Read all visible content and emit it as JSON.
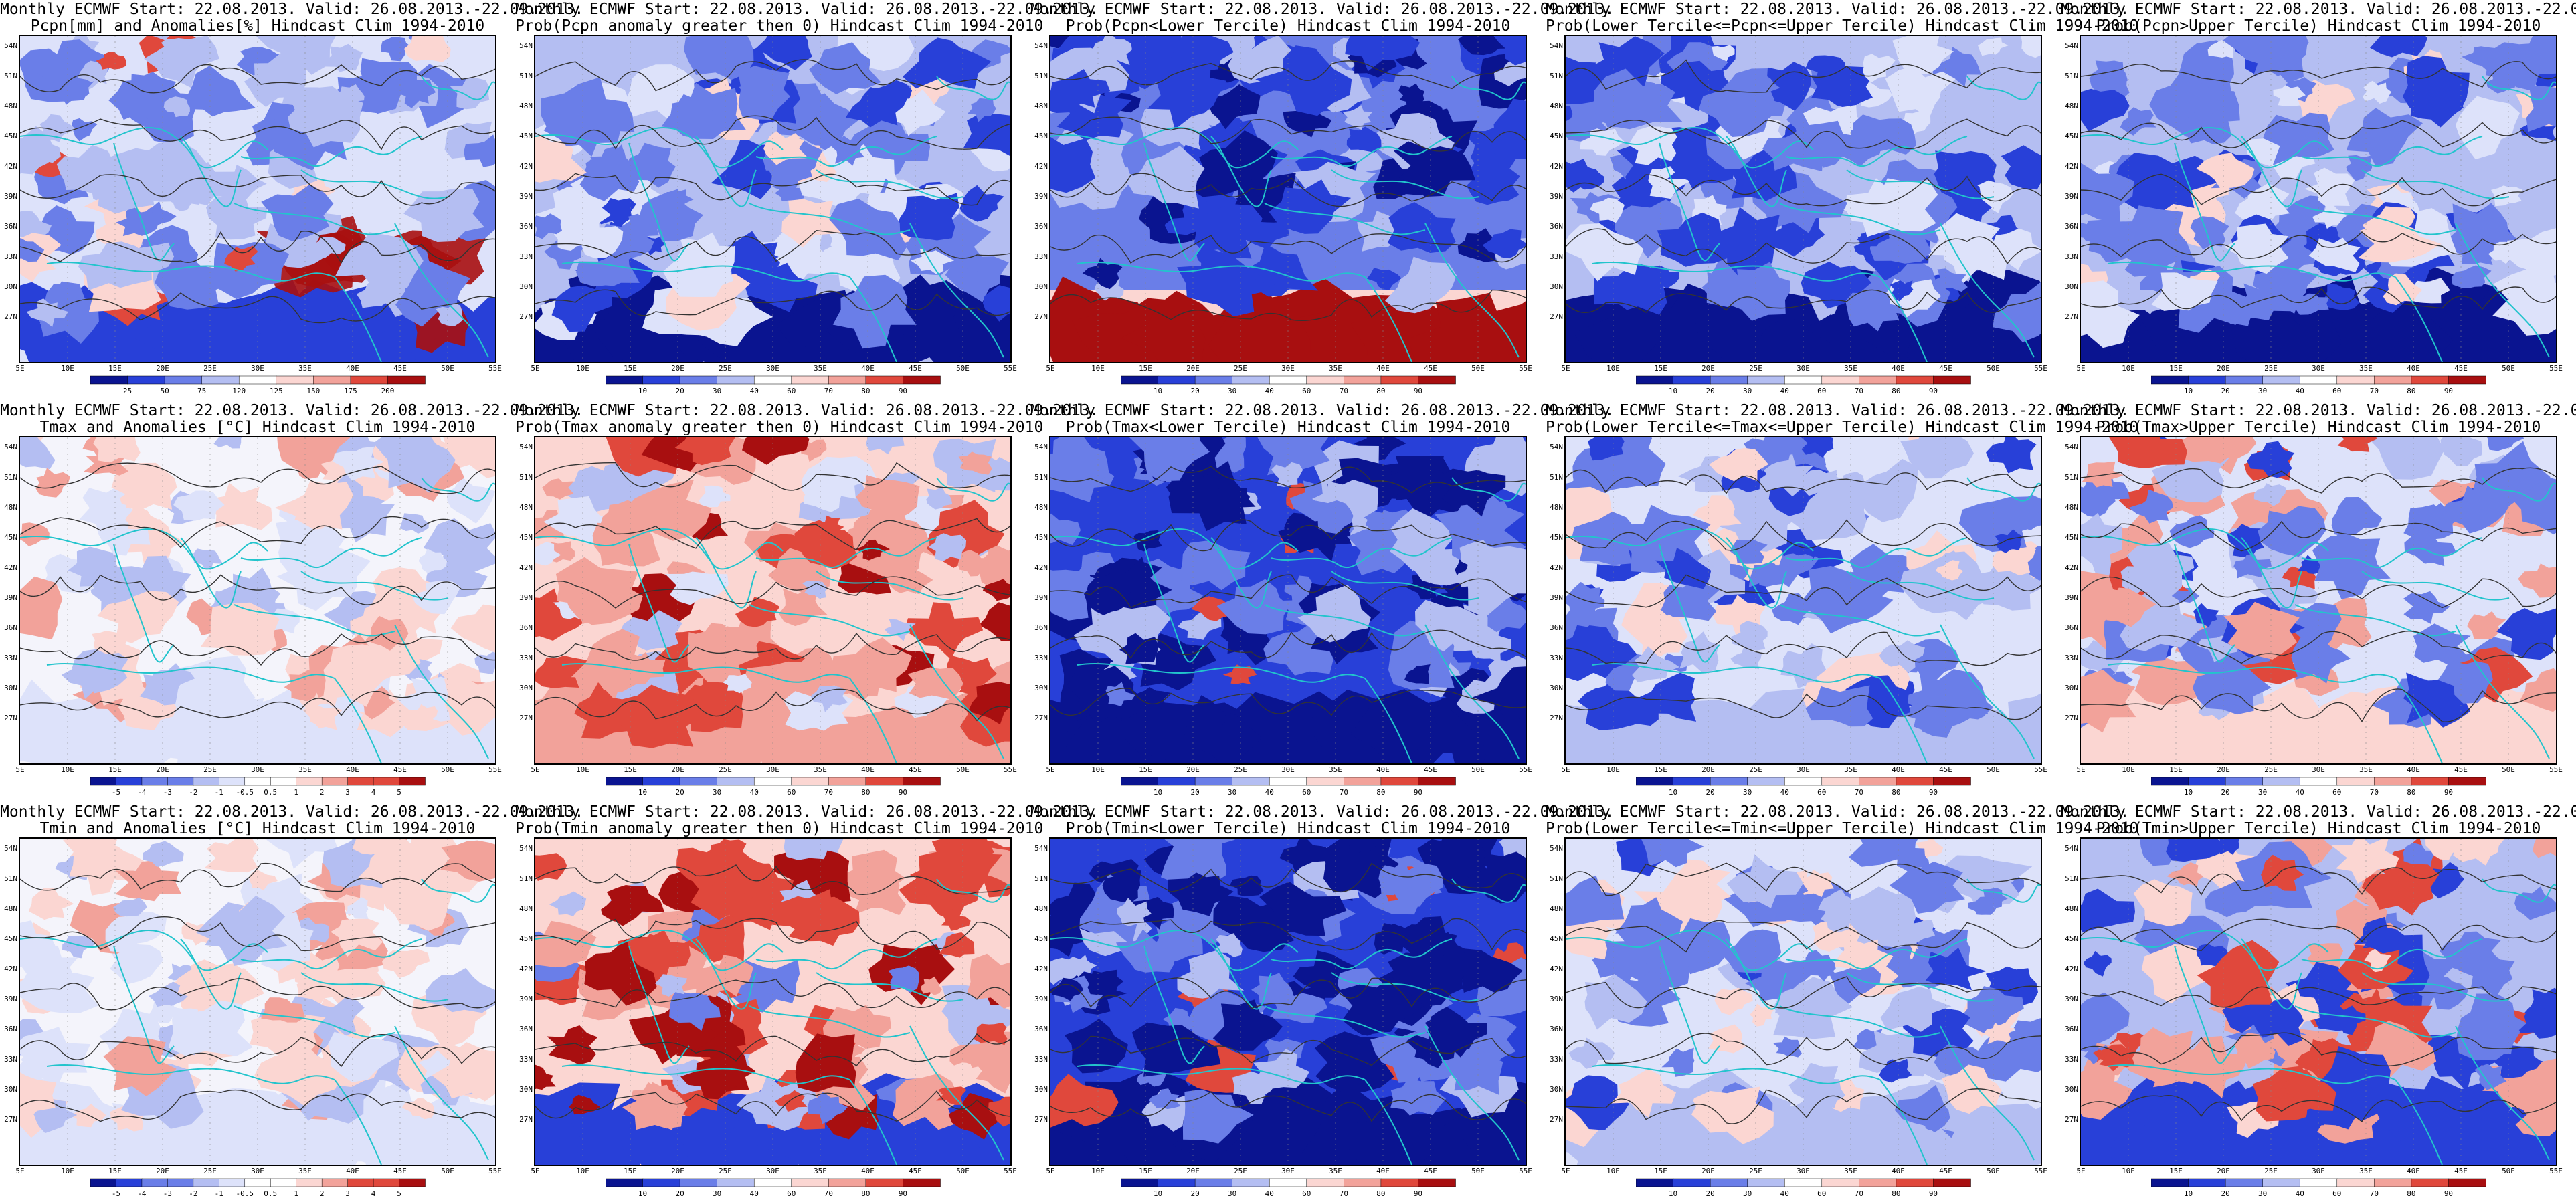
{
  "header": "Monthly ECMWF Start: 22.08.2013. Valid: 26.08.2013.-22.09.2013.",
  "lat_labels": [
    "54N",
    "51N",
    "48N",
    "45N",
    "42N",
    "39N",
    "36N",
    "33N",
    "30N",
    "27N"
  ],
  "lon_labels": [
    "5E",
    "10E",
    "15E",
    "20E",
    "25E",
    "30E",
    "35E",
    "40E",
    "45E",
    "50E",
    "55E"
  ],
  "colorbars": {
    "precip_anom": [
      "25",
      "50",
      "75",
      "120",
      "125",
      "150",
      "175",
      "200"
    ],
    "prob": [
      "10",
      "20",
      "30",
      "40",
      "60",
      "70",
      "80",
      "90"
    ],
    "temp_anom": [
      "-5",
      "-4",
      "-3",
      "-2",
      "-1",
      "-0.5",
      "0.5",
      "1",
      "2",
      "3",
      "4",
      "5"
    ]
  },
  "colors": {
    "deep_blue": "#0a1490",
    "blue": "#2840d8",
    "mid_blue": "#6a7ee8",
    "light_blue": "#b4bef2",
    "pale_blue": "#dde2fa",
    "pale_red": "#fbd6d2",
    "light_red": "#f2a29a",
    "red": "#e0483c",
    "dark_red": "#a80f10",
    "coast": "#22c4cc",
    "contour": "#333333"
  },
  "panels": [
    {
      "row": 0,
      "col": 0,
      "title2": "Pcpn[mm] and Anomalies[%] Hindcast Clim 1994-2010",
      "colorbar": "precip_anom",
      "pattern": "precip_anom"
    },
    {
      "row": 0,
      "col": 1,
      "title2": "Prob(Pcpn anomaly greater then 0) Hindcast Clim 1994-2010",
      "colorbar": "prob",
      "pattern": "blue_south"
    },
    {
      "row": 0,
      "col": 2,
      "title2": "Prob(Pcpn<Lower Tercile) Hindcast Clim 1994-2010",
      "colorbar": "prob",
      "pattern": "red_south"
    },
    {
      "row": 0,
      "col": 3,
      "title2": "Prob(Lower Tercile<=Pcpn<=Upper Tercile) Hindcast Clim 1994-2010",
      "colorbar": "prob",
      "pattern": "blue_south_strong"
    },
    {
      "row": 0,
      "col": 4,
      "title2": "Prob(Pcpn>Upper Tercile) Hindcast Clim 1994-2010",
      "colorbar": "prob",
      "pattern": "blue_south"
    },
    {
      "row": 1,
      "col": 0,
      "title2": "Tmax and Anomalies [°C] Hindcast Clim 1994-2010",
      "colorbar": "temp_anom",
      "pattern": "temp_anom_light"
    },
    {
      "row": 1,
      "col": 1,
      "title2": "Prob(Tmax anomaly greater then 0) Hindcast Clim 1994-2010",
      "colorbar": "prob",
      "pattern": "red_center"
    },
    {
      "row": 1,
      "col": 2,
      "title2": "Prob(Tmax<Lower Tercile) Hindcast Clim 1994-2010",
      "colorbar": "prob",
      "pattern": "blue_all"
    },
    {
      "row": 1,
      "col": 3,
      "title2": "Prob(Lower Tercile<=Tmax<=Upper Tercile) Hindcast Clim 1994-2010",
      "colorbar": "prob",
      "pattern": "blue_mixed"
    },
    {
      "row": 1,
      "col": 4,
      "title2": "Prob(Tmax>Upper Tercile) Hindcast Clim 1994-2010",
      "colorbar": "prob",
      "pattern": "red_mixed"
    },
    {
      "row": 2,
      "col": 0,
      "title2": "Tmin and Anomalies [°C] Hindcast Clim 1994-2010",
      "colorbar": "temp_anom",
      "pattern": "temp_anom_light"
    },
    {
      "row": 2,
      "col": 1,
      "title2": "Prob(Tmin anomaly greater then 0) Hindcast Clim 1994-2010",
      "colorbar": "prob",
      "pattern": "red_center_strong"
    },
    {
      "row": 2,
      "col": 2,
      "title2": "Prob(Tmin<Lower Tercile) Hindcast Clim 1994-2010",
      "colorbar": "prob",
      "pattern": "blue_all"
    },
    {
      "row": 2,
      "col": 3,
      "title2": "Prob(Lower Tercile<=Tmin<=Upper Tercile) Hindcast Clim 1994-2010",
      "colorbar": "prob",
      "pattern": "blue_mixed"
    },
    {
      "row": 2,
      "col": 4,
      "title2": "Prob(Tmin>Upper Tercile) Hindcast Clim 1994-2010",
      "colorbar": "prob",
      "pattern": "red_mixed_blue_south"
    }
  ]
}
